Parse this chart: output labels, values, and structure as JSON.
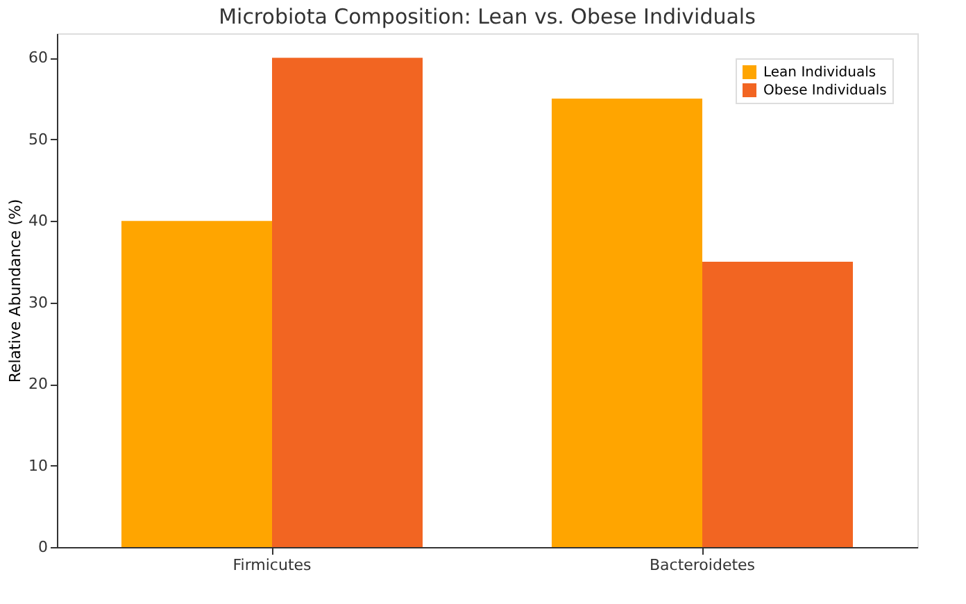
{
  "chart_data": {
    "type": "bar",
    "title": "Microbiota Composition: Lean vs. Obese Individuals",
    "ylabel": "Relative Abundance (%)",
    "categories": [
      "Firmicutes",
      "Bacteroidetes"
    ],
    "series": [
      {
        "name": "Lean Individuals",
        "color": "#ffa500",
        "values": [
          40,
          55
        ]
      },
      {
        "name": "Obese Individuals",
        "color": "#f26522",
        "values": [
          60,
          35
        ]
      }
    ],
    "ylim": [
      0,
      63
    ],
    "yticks": [
      0,
      10,
      20,
      30,
      40,
      50,
      60
    ],
    "grid": false,
    "legend": "top right"
  }
}
